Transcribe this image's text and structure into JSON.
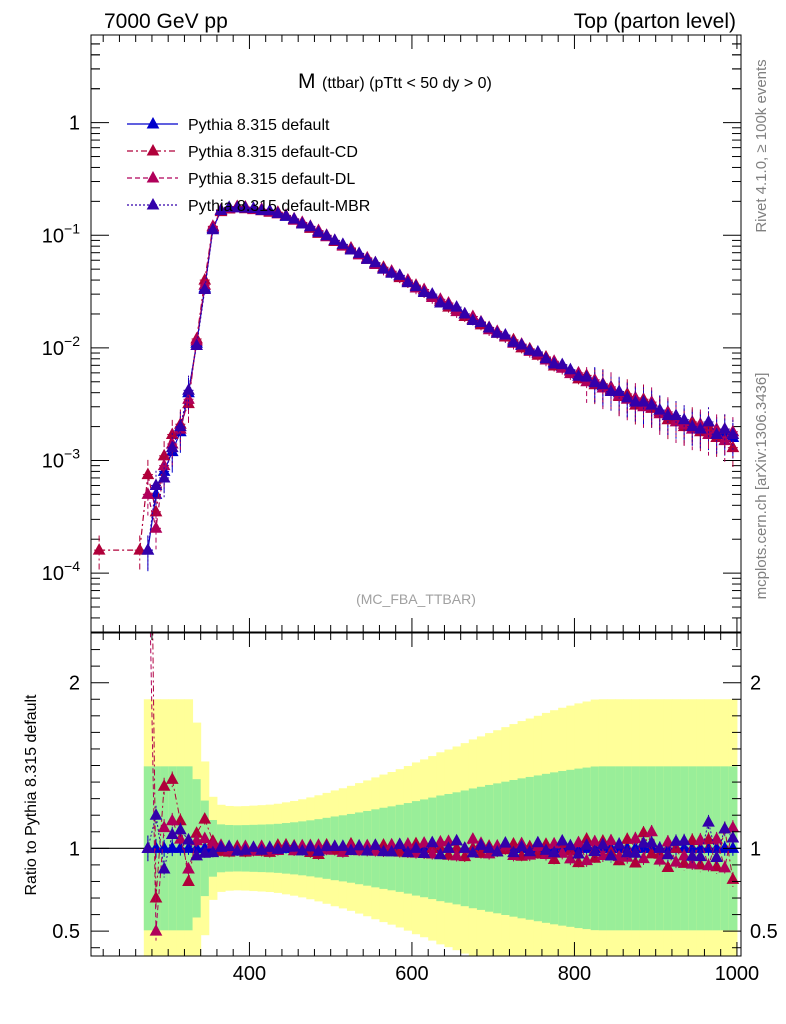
{
  "chart_data": {
    "type": "scatter",
    "header_left": "7000 GeV pp",
    "header_right": "Top (parton level)",
    "title_main": "M",
    "title_sub": "(ttbar) (pTtt < 50 dy > 0)",
    "analysis_tag": "(MC_FBA_TTBAR)",
    "side_label_top": "Rivet 4.1.0, ≥ 100k events",
    "side_label_bottom": "mcplots.cern.ch [arXiv:1306.3436]",
    "ratio_ylabel": "Ratio to Pythia 8.315 default",
    "xlim": [
      205,
      1005
    ],
    "ylim_main": [
      3e-05,
      6
    ],
    "ylim_ratio": [
      0.35,
      2.3
    ],
    "x_ticks": [
      {
        "value": 400,
        "label": "400"
      },
      {
        "value": 600,
        "label": "600"
      },
      {
        "value": 800,
        "label": "800"
      },
      {
        "value": 1000,
        "label": "1000"
      }
    ],
    "y_ticks_main": [
      {
        "value": 1,
        "mant": "1",
        "exp": ""
      },
      {
        "value": 0.1,
        "mant": "10",
        "exp": "−1"
      },
      {
        "value": 0.01,
        "mant": "10",
        "exp": "−2"
      },
      {
        "value": 0.001,
        "mant": "10",
        "exp": "−3"
      },
      {
        "value": 0.0001,
        "mant": "10",
        "exp": "−4"
      }
    ],
    "y_ticks_ratio": [
      {
        "value": 2,
        "label": "2"
      },
      {
        "value": 1,
        "label": "1"
      },
      {
        "value": 0.5,
        "label": "0.5"
      }
    ],
    "series": [
      {
        "name": "Pythia 8.315 default",
        "color": "#0000cc",
        "style": "solid",
        "points": [
          [
            275,
            0.00016
          ],
          [
            285,
            0.0005
          ],
          [
            295,
            0.0008
          ],
          [
            305,
            0.0012
          ],
          [
            315,
            0.0018
          ],
          [
            325,
            0.004
          ],
          [
            335,
            0.011
          ],
          [
            345,
            0.034
          ],
          [
            355,
            0.115
          ],
          [
            365,
            0.165
          ],
          [
            375,
            0.175
          ],
          [
            385,
            0.178
          ],
          [
            395,
            0.176
          ],
          [
            405,
            0.172
          ],
          [
            415,
            0.168
          ],
          [
            425,
            0.164
          ],
          [
            435,
            0.157
          ],
          [
            445,
            0.147
          ],
          [
            455,
            0.138
          ],
          [
            465,
            0.128
          ],
          [
            475,
            0.118
          ],
          [
            485,
            0.108
          ],
          [
            495,
            0.098
          ],
          [
            505,
            0.089
          ],
          [
            515,
            0.082
          ],
          [
            525,
            0.075
          ],
          [
            535,
            0.068
          ],
          [
            545,
            0.062
          ],
          [
            555,
            0.056
          ],
          [
            565,
            0.051
          ],
          [
            575,
            0.047
          ],
          [
            585,
            0.043
          ],
          [
            595,
            0.039
          ],
          [
            605,
            0.035
          ],
          [
            615,
            0.032
          ],
          [
            625,
            0.029
          ],
          [
            635,
            0.026
          ],
          [
            645,
            0.024
          ],
          [
            655,
            0.022
          ],
          [
            665,
            0.02
          ],
          [
            675,
            0.018
          ],
          [
            685,
            0.0165
          ],
          [
            695,
            0.015
          ],
          [
            705,
            0.0138
          ],
          [
            715,
            0.0126
          ],
          [
            725,
            0.0115
          ],
          [
            735,
            0.0105
          ],
          [
            745,
            0.0097
          ],
          [
            755,
            0.0089
          ],
          [
            765,
            0.0081
          ],
          [
            775,
            0.0074
          ],
          [
            785,
            0.0068
          ],
          [
            795,
            0.0063
          ],
          [
            805,
            0.0058
          ],
          [
            815,
            0.0054
          ],
          [
            825,
            0.005
          ],
          [
            835,
            0.0046
          ],
          [
            845,
            0.0043
          ],
          [
            855,
            0.004
          ],
          [
            865,
            0.0037
          ],
          [
            875,
            0.0034
          ],
          [
            885,
            0.0032
          ],
          [
            895,
            0.003
          ],
          [
            905,
            0.0028
          ],
          [
            915,
            0.0026
          ],
          [
            925,
            0.0024
          ],
          [
            935,
            0.0022
          ],
          [
            945,
            0.0021
          ],
          [
            955,
            0.002
          ],
          [
            965,
            0.0019
          ],
          [
            975,
            0.0018
          ],
          [
            985,
            0.0017
          ],
          [
            995,
            0.0016
          ]
        ]
      },
      {
        "name": "Pythia 8.315 default-CD",
        "color": "#b0003a",
        "style": "dashdot",
        "points": [
          [
            215,
            0.00016
          ],
          [
            265,
            0.00016
          ],
          [
            275,
            0.00075
          ],
          [
            285,
            0.00035
          ],
          [
            295,
            0.0011
          ],
          [
            305,
            0.0017
          ],
          [
            315,
            0.0021
          ],
          [
            325,
            0.0032
          ],
          [
            335,
            0.012
          ],
          [
            345,
            0.04
          ],
          [
            355,
            0.12
          ],
          [
            365,
            0.162
          ],
          [
            375,
            0.171
          ],
          [
            385,
            0.18
          ],
          [
            395,
            0.172
          ],
          [
            405,
            0.17
          ],
          [
            415,
            0.165
          ],
          [
            425,
            0.16
          ],
          [
            435,
            0.16
          ],
          [
            445,
            0.15
          ],
          [
            455,
            0.14
          ],
          [
            465,
            0.128
          ],
          [
            475,
            0.115
          ],
          [
            485,
            0.104
          ],
          [
            495,
            0.1
          ],
          [
            505,
            0.088
          ],
          [
            515,
            0.082
          ],
          [
            525,
            0.077
          ],
          [
            535,
            0.068
          ],
          [
            545,
            0.061
          ],
          [
            555,
            0.057
          ],
          [
            565,
            0.052
          ],
          [
            575,
            0.047
          ],
          [
            585,
            0.042
          ],
          [
            595,
            0.038
          ],
          [
            605,
            0.036
          ],
          [
            615,
            0.031
          ],
          [
            625,
            0.029
          ],
          [
            635,
            0.026
          ],
          [
            645,
            0.023
          ],
          [
            655,
            0.022
          ],
          [
            665,
            0.019
          ],
          [
            675,
            0.018
          ],
          [
            685,
            0.016
          ],
          [
            695,
            0.0152
          ],
          [
            705,
            0.0135
          ],
          [
            715,
            0.0125
          ],
          [
            725,
            0.0118
          ],
          [
            735,
            0.01
          ],
          [
            745,
            0.0098
          ],
          [
            755,
            0.0086
          ],
          [
            765,
            0.0083
          ],
          [
            775,
            0.0069
          ],
          [
            785,
            0.007
          ],
          [
            795,
            0.0062
          ],
          [
            805,
            0.0053
          ],
          [
            815,
            0.0057
          ],
          [
            825,
            0.0047
          ],
          [
            835,
            0.0048
          ],
          [
            845,
            0.0042
          ],
          [
            855,
            0.0037
          ],
          [
            865,
            0.0039
          ],
          [
            875,
            0.0031
          ],
          [
            885,
            0.0035
          ],
          [
            895,
            0.0029
          ],
          [
            905,
            0.0027
          ],
          [
            915,
            0.0023
          ],
          [
            925,
            0.0024
          ],
          [
            935,
            0.002
          ],
          [
            945,
            0.0022
          ],
          [
            955,
            0.0018
          ],
          [
            965,
            0.002
          ],
          [
            975,
            0.0016
          ],
          [
            985,
            0.0019
          ],
          [
            995,
            0.0013
          ]
        ]
      },
      {
        "name": "Pythia 8.315 default-DL",
        "color": "#b0005a",
        "style": "dashed",
        "points": [
          [
            275,
            0.0005
          ],
          [
            285,
            0.00025
          ],
          [
            295,
            0.0009
          ],
          [
            305,
            0.0014
          ],
          [
            315,
            0.0019
          ],
          [
            325,
            0.0035
          ],
          [
            335,
            0.0115
          ],
          [
            345,
            0.036
          ],
          [
            355,
            0.118
          ],
          [
            365,
            0.168
          ],
          [
            375,
            0.173
          ],
          [
            385,
            0.176
          ],
          [
            395,
            0.178
          ],
          [
            405,
            0.169
          ],
          [
            415,
            0.17
          ],
          [
            425,
            0.162
          ],
          [
            435,
            0.155
          ],
          [
            445,
            0.149
          ],
          [
            455,
            0.136
          ],
          [
            465,
            0.13
          ],
          [
            475,
            0.12
          ],
          [
            485,
            0.11
          ],
          [
            495,
            0.097
          ],
          [
            505,
            0.09
          ],
          [
            515,
            0.08
          ],
          [
            525,
            0.076
          ],
          [
            535,
            0.067
          ],
          [
            545,
            0.063
          ],
          [
            555,
            0.055
          ],
          [
            565,
            0.05
          ],
          [
            575,
            0.048
          ],
          [
            585,
            0.044
          ],
          [
            595,
            0.04
          ],
          [
            605,
            0.034
          ],
          [
            615,
            0.033
          ],
          [
            625,
            0.028
          ],
          [
            635,
            0.027
          ],
          [
            645,
            0.025
          ],
          [
            655,
            0.021
          ],
          [
            665,
            0.02
          ],
          [
            675,
            0.019
          ],
          [
            685,
            0.017
          ],
          [
            695,
            0.0145
          ],
          [
            705,
            0.014
          ],
          [
            715,
            0.0128
          ],
          [
            725,
            0.011
          ],
          [
            735,
            0.0108
          ],
          [
            745,
            0.0093
          ],
          [
            755,
            0.009
          ],
          [
            765,
            0.0078
          ],
          [
            775,
            0.0076
          ],
          [
            785,
            0.0066
          ],
          [
            795,
            0.0059
          ],
          [
            805,
            0.006
          ],
          [
            815,
            0.005
          ],
          [
            825,
            0.0052
          ],
          [
            835,
            0.0044
          ],
          [
            845,
            0.0045
          ],
          [
            855,
            0.0038
          ],
          [
            865,
            0.0035
          ],
          [
            875,
            0.0036
          ],
          [
            885,
            0.003
          ],
          [
            895,
            0.0033
          ],
          [
            905,
            0.0026
          ],
          [
            915,
            0.0027
          ],
          [
            925,
            0.0022
          ],
          [
            935,
            0.0021
          ],
          [
            945,
            0.0019
          ],
          [
            955,
            0.0021
          ],
          [
            965,
            0.0017
          ],
          [
            975,
            0.0019
          ],
          [
            985,
            0.0015
          ],
          [
            995,
            0.0018
          ]
        ]
      },
      {
        "name": "Pythia 8.315 default-MBR",
        "color": "#3300aa",
        "style": "dotted",
        "points": [
          [
            275,
            0.00016
          ],
          [
            285,
            0.0006
          ],
          [
            295,
            0.0007
          ],
          [
            305,
            0.0013
          ],
          [
            315,
            0.002
          ],
          [
            325,
            0.0042
          ],
          [
            335,
            0.0105
          ],
          [
            345,
            0.033
          ],
          [
            355,
            0.112
          ],
          [
            365,
            0.166
          ],
          [
            375,
            0.177
          ],
          [
            385,
            0.175
          ],
          [
            395,
            0.174
          ],
          [
            405,
            0.173
          ],
          [
            415,
            0.166
          ],
          [
            425,
            0.165
          ],
          [
            435,
            0.156
          ],
          [
            445,
            0.148
          ],
          [
            455,
            0.139
          ],
          [
            465,
            0.126
          ],
          [
            475,
            0.119
          ],
          [
            485,
            0.106
          ],
          [
            495,
            0.099
          ],
          [
            505,
            0.09
          ],
          [
            515,
            0.083
          ],
          [
            525,
            0.074
          ],
          [
            535,
            0.069
          ],
          [
            545,
            0.061
          ],
          [
            555,
            0.057
          ],
          [
            565,
            0.05
          ],
          [
            575,
            0.046
          ],
          [
            585,
            0.044
          ],
          [
            595,
            0.038
          ],
          [
            605,
            0.035
          ],
          [
            615,
            0.031
          ],
          [
            625,
            0.03
          ],
          [
            635,
            0.025
          ],
          [
            645,
            0.024
          ],
          [
            655,
            0.023
          ],
          [
            665,
            0.02
          ],
          [
            675,
            0.0175
          ],
          [
            685,
            0.0168
          ],
          [
            695,
            0.015
          ],
          [
            705,
            0.0135
          ],
          [
            715,
            0.013
          ],
          [
            725,
            0.0112
          ],
          [
            735,
            0.0106
          ],
          [
            745,
            0.0095
          ],
          [
            755,
            0.0092
          ],
          [
            765,
            0.008
          ],
          [
            775,
            0.0072
          ],
          [
            785,
            0.0071
          ],
          [
            795,
            0.0064
          ],
          [
            805,
            0.0056
          ],
          [
            815,
            0.0055
          ],
          [
            825,
            0.0049
          ],
          [
            835,
            0.0047
          ],
          [
            845,
            0.0041
          ],
          [
            855,
            0.0041
          ],
          [
            865,
            0.0036
          ],
          [
            875,
            0.0033
          ],
          [
            885,
            0.0033
          ],
          [
            895,
            0.0031
          ],
          [
            905,
            0.0028
          ],
          [
            915,
            0.0025
          ],
          [
            925,
            0.0025
          ],
          [
            935,
            0.0023
          ],
          [
            945,
            0.002
          ],
          [
            955,
            0.0019
          ],
          [
            965,
            0.0022
          ],
          [
            975,
            0.0017
          ],
          [
            985,
            0.0019
          ],
          [
            995,
            0.0017
          ]
        ]
      }
    ]
  }
}
